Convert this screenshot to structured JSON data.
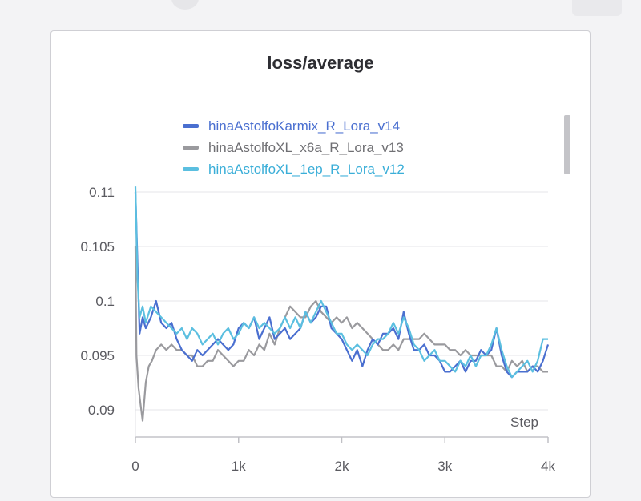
{
  "chart_data": {
    "type": "line",
    "title": "loss/average",
    "xlabel": "Step",
    "ylabel": "",
    "xlim": [
      0,
      4000
    ],
    "ylim": [
      0.0875,
      0.11
    ],
    "x_ticks": [
      "0",
      "1k",
      "2k",
      "3k",
      "4k"
    ],
    "y_ticks": [
      "0.11",
      "0.105",
      "0.1",
      "0.095",
      "0.09"
    ],
    "grid": true,
    "legend_position": "top",
    "series": [
      {
        "name": "hinaAstolfoKarmix_R_Lora_v14",
        "color": "#4a6fd0",
        "x": [
          0,
          20,
          40,
          70,
          100,
          150,
          200,
          250,
          300,
          350,
          400,
          450,
          500,
          550,
          600,
          650,
          700,
          750,
          800,
          850,
          900,
          950,
          1000,
          1050,
          1100,
          1150,
          1200,
          1250,
          1300,
          1350,
          1400,
          1450,
          1500,
          1550,
          1600,
          1650,
          1700,
          1750,
          1800,
          1850,
          1900,
          1950,
          2000,
          2050,
          2100,
          2150,
          2200,
          2250,
          2300,
          2350,
          2400,
          2450,
          2500,
          2550,
          2600,
          2650,
          2700,
          2750,
          2800,
          2850,
          2900,
          2950,
          3000,
          3050,
          3100,
          3150,
          3200,
          3250,
          3300,
          3350,
          3400,
          3450,
          3500,
          3550,
          3600,
          3650,
          3700,
          3750,
          3800,
          3850,
          3900,
          3950,
          4000
        ],
        "y": [
          0.11,
          0.1035,
          0.097,
          0.0985,
          0.0975,
          0.0985,
          0.1,
          0.098,
          0.0975,
          0.098,
          0.0965,
          0.0955,
          0.095,
          0.0945,
          0.0955,
          0.095,
          0.0955,
          0.096,
          0.0965,
          0.096,
          0.0955,
          0.096,
          0.0975,
          0.098,
          0.0975,
          0.0985,
          0.0965,
          0.0975,
          0.0985,
          0.0965,
          0.097,
          0.0975,
          0.0965,
          0.097,
          0.0975,
          0.099,
          0.098,
          0.0985,
          0.0995,
          0.0995,
          0.0975,
          0.097,
          0.0965,
          0.0955,
          0.0945,
          0.0955,
          0.094,
          0.0955,
          0.0965,
          0.096,
          0.097,
          0.097,
          0.0975,
          0.0965,
          0.099,
          0.097,
          0.0955,
          0.0955,
          0.096,
          0.095,
          0.095,
          0.0945,
          0.0935,
          0.0935,
          0.094,
          0.0945,
          0.0935,
          0.0945,
          0.0945,
          0.0955,
          0.095,
          0.0955,
          0.0975,
          0.095,
          0.0935,
          0.093,
          0.0935,
          0.0935,
          0.0935,
          0.094,
          0.0935,
          0.0945,
          0.096
        ]
      },
      {
        "name": "hinaAstolfoXL_x6a_R_Lora_v13",
        "color": "#9a9a9e",
        "x": [
          0,
          10,
          30,
          50,
          70,
          100,
          130,
          160,
          200,
          250,
          300,
          350,
          400,
          450,
          500,
          550,
          600,
          650,
          700,
          750,
          800,
          850,
          900,
          950,
          1000,
          1050,
          1100,
          1150,
          1200,
          1250,
          1300,
          1350,
          1400,
          1450,
          1500,
          1550,
          1600,
          1650,
          1700,
          1750,
          1800,
          1850,
          1900,
          1950,
          2000,
          2050,
          2100,
          2150,
          2200,
          2250,
          2300,
          2350,
          2400,
          2450,
          2500,
          2550,
          2600,
          2650,
          2700,
          2750,
          2800,
          2850,
          2900,
          2950,
          3000,
          3050,
          3100,
          3150,
          3200,
          3250,
          3300,
          3350,
          3400,
          3450,
          3500,
          3550,
          3600,
          3650,
          3700,
          3750,
          3800,
          3850,
          3900,
          3950,
          4000
        ],
        "y": [
          0.105,
          0.095,
          0.092,
          0.0905,
          0.089,
          0.0925,
          0.094,
          0.0945,
          0.0955,
          0.096,
          0.0955,
          0.096,
          0.0955,
          0.0955,
          0.095,
          0.095,
          0.094,
          0.094,
          0.0945,
          0.0945,
          0.0955,
          0.095,
          0.0945,
          0.094,
          0.0945,
          0.0945,
          0.0955,
          0.095,
          0.096,
          0.0955,
          0.097,
          0.096,
          0.0975,
          0.0985,
          0.0995,
          0.099,
          0.0985,
          0.0985,
          0.0995,
          0.1,
          0.099,
          0.0985,
          0.098,
          0.0985,
          0.098,
          0.0985,
          0.0975,
          0.098,
          0.0975,
          0.097,
          0.0965,
          0.096,
          0.0955,
          0.0955,
          0.096,
          0.0955,
          0.0965,
          0.0965,
          0.0965,
          0.0965,
          0.097,
          0.0965,
          0.096,
          0.096,
          0.096,
          0.0955,
          0.0955,
          0.095,
          0.0955,
          0.095,
          0.095,
          0.095,
          0.095,
          0.095,
          0.094,
          0.094,
          0.0935,
          0.0945,
          0.094,
          0.0945,
          0.0935,
          0.094,
          0.094,
          0.0935,
          0.0935
        ]
      },
      {
        "name": "hinaAstolfoXL_1ep_R_Lora_v12",
        "color": "#5bbfe0",
        "x": [
          0,
          20,
          40,
          70,
          100,
          150,
          200,
          250,
          300,
          350,
          400,
          450,
          500,
          550,
          600,
          650,
          700,
          750,
          800,
          850,
          900,
          950,
          1000,
          1050,
          1100,
          1150,
          1200,
          1250,
          1300,
          1350,
          1400,
          1450,
          1500,
          1550,
          1600,
          1650,
          1700,
          1750,
          1800,
          1850,
          1900,
          1950,
          2000,
          2050,
          2100,
          2150,
          2200,
          2250,
          2300,
          2350,
          2400,
          2450,
          2500,
          2550,
          2600,
          2650,
          2700,
          2750,
          2800,
          2850,
          2900,
          2950,
          3000,
          3050,
          3100,
          3150,
          3200,
          3250,
          3300,
          3350,
          3400,
          3450,
          3500,
          3550,
          3600,
          3650,
          3700,
          3750,
          3800,
          3850,
          3900,
          3950,
          4000
        ],
        "y": [
          0.1105,
          0.102,
          0.0985,
          0.0995,
          0.098,
          0.0995,
          0.099,
          0.0985,
          0.098,
          0.0975,
          0.097,
          0.0975,
          0.0965,
          0.0975,
          0.097,
          0.096,
          0.0965,
          0.097,
          0.096,
          0.097,
          0.0975,
          0.0965,
          0.097,
          0.098,
          0.0975,
          0.0985,
          0.0975,
          0.098,
          0.0975,
          0.097,
          0.0975,
          0.0985,
          0.0975,
          0.0985,
          0.0975,
          0.099,
          0.098,
          0.099,
          0.1,
          0.099,
          0.098,
          0.097,
          0.097,
          0.096,
          0.0955,
          0.096,
          0.0955,
          0.095,
          0.096,
          0.0965,
          0.0965,
          0.097,
          0.098,
          0.097,
          0.0985,
          0.0975,
          0.096,
          0.0955,
          0.0945,
          0.095,
          0.0955,
          0.0945,
          0.0945,
          0.094,
          0.0935,
          0.0945,
          0.094,
          0.095,
          0.094,
          0.095,
          0.095,
          0.096,
          0.0975,
          0.0955,
          0.094,
          0.093,
          0.0935,
          0.094,
          0.0945,
          0.0935,
          0.0945,
          0.0965,
          0.0965
        ]
      }
    ]
  }
}
